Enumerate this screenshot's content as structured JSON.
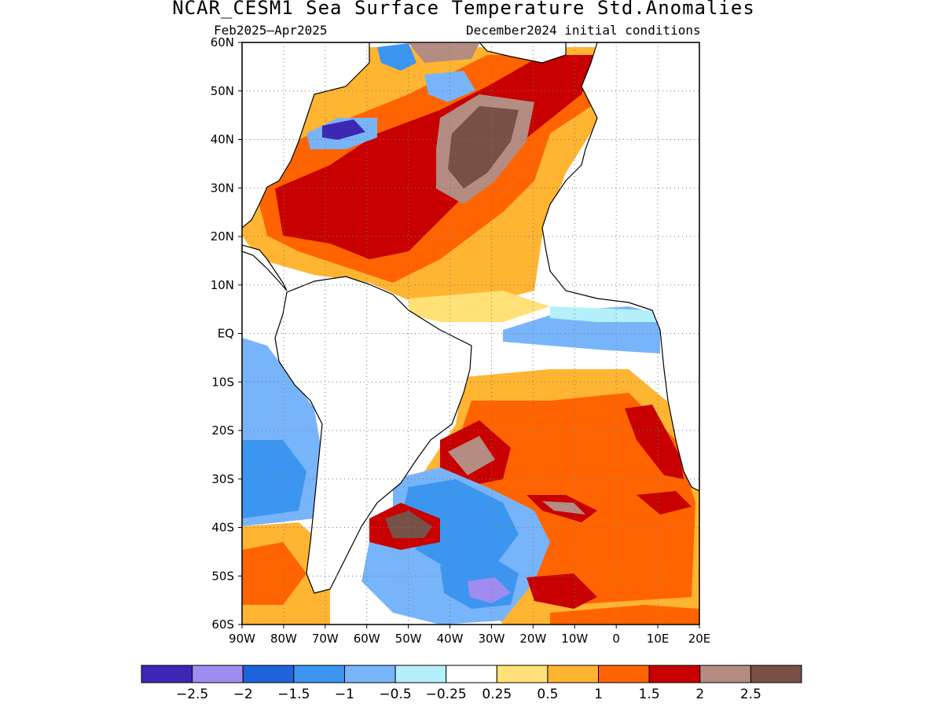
{
  "title": "NCAR_CESM1 Sea Surface Temperature Std.Anomalies",
  "subtitle_left": "Feb2025–Apr2025",
  "subtitle_right": "December2024 initial conditions",
  "map": {
    "lon_range": [
      -90,
      20
    ],
    "lat_range": [
      -60,
      60
    ],
    "lat_ticks": [
      {
        "value": 60,
        "label": "60N"
      },
      {
        "value": 50,
        "label": "50N"
      },
      {
        "value": 40,
        "label": "40N"
      },
      {
        "value": 30,
        "label": "30N"
      },
      {
        "value": 20,
        "label": "20N"
      },
      {
        "value": 10,
        "label": "10N"
      },
      {
        "value": 0,
        "label": "EQ"
      },
      {
        "value": -10,
        "label": "10S"
      },
      {
        "value": -20,
        "label": "20S"
      },
      {
        "value": -30,
        "label": "30S"
      },
      {
        "value": -40,
        "label": "40S"
      },
      {
        "value": -50,
        "label": "50S"
      },
      {
        "value": -60,
        "label": "60S"
      }
    ],
    "lon_ticks": [
      {
        "value": -90,
        "label": "90W"
      },
      {
        "value": -80,
        "label": "80W"
      },
      {
        "value": -70,
        "label": "70W"
      },
      {
        "value": -60,
        "label": "60W"
      },
      {
        "value": -50,
        "label": "50W"
      },
      {
        "value": -40,
        "label": "40W"
      },
      {
        "value": -30,
        "label": "30W"
      },
      {
        "value": -20,
        "label": "20W"
      },
      {
        "value": -10,
        "label": "10W"
      },
      {
        "value": 0,
        "label": "0"
      },
      {
        "value": 10,
        "label": "10E"
      },
      {
        "value": 20,
        "label": "20E"
      }
    ],
    "grid": "dotted"
  },
  "colorbar": {
    "colors": [
      "#3c28b4",
      "#a08cf0",
      "#1e64dc",
      "#3c96f0",
      "#78b4fa",
      "#b4f0fa",
      "#ffffff",
      "#ffe178",
      "#ffb432",
      "#ff6400",
      "#c80000",
      "#b48c82",
      "#785046"
    ],
    "labels": [
      "−2.5",
      "−2",
      "−1.5",
      "−1",
      "−0.5",
      "−0.25",
      "0.25",
      "0.5",
      "1",
      "1.5",
      "2",
      "2.5"
    ]
  },
  "colors": {
    "land": "#ffffff",
    "coast": "#000000"
  }
}
